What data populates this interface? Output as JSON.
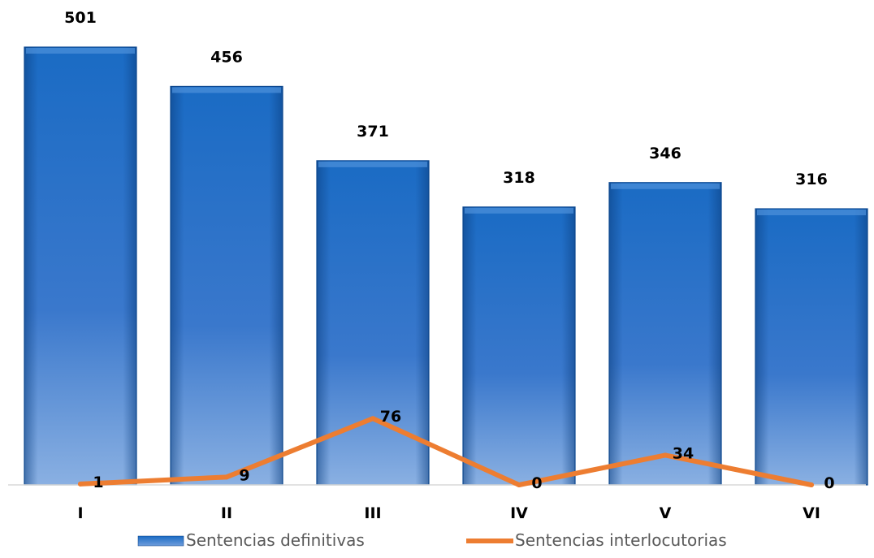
{
  "chart_data": {
    "type": "bar",
    "categories": [
      "I",
      "II",
      "III",
      "IV",
      "V",
      "VI"
    ],
    "series": [
      {
        "name": "Sentencias definitivas",
        "type": "bar",
        "values": [
          501,
          456,
          371,
          318,
          346,
          316
        ],
        "color": "#1f6fc4"
      },
      {
        "name": "Sentencias interlocutorias",
        "type": "line",
        "values": [
          1,
          9,
          76,
          0,
          34,
          0
        ],
        "color": "#ed7d31"
      }
    ],
    "data_labels": true,
    "legend_position": "bottom",
    "grid": false,
    "ylim": [
      0,
      501
    ]
  }
}
